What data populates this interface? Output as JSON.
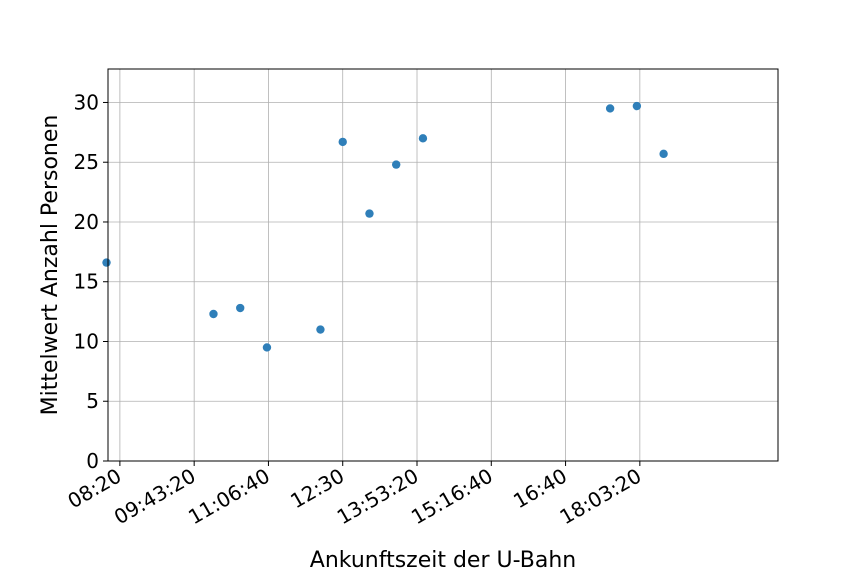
{
  "chart_data": {
    "type": "scatter",
    "title": "",
    "xlabel": "Ankunftszeit der U-Bahn",
    "ylabel": "Mittelwert Anzahl Personen",
    "grid": true,
    "marker_color": "#2f7fb9",
    "xlim_seconds": [
      29200,
      74300
    ],
    "ylim": [
      0,
      32.8
    ],
    "x_ticks": [
      {
        "seconds": 30000,
        "label": "08:20"
      },
      {
        "seconds": 35000,
        "label": "09:43:20"
      },
      {
        "seconds": 40000,
        "label": "11:06:40"
      },
      {
        "seconds": 45000,
        "label": "12:30"
      },
      {
        "seconds": 50000,
        "label": "13:53:20"
      },
      {
        "seconds": 55000,
        "label": "15:16:40"
      },
      {
        "seconds": 60000,
        "label": "16:40"
      },
      {
        "seconds": 65000,
        "label": "18:03:20"
      }
    ],
    "y_ticks": [
      {
        "value": 0,
        "label": "0"
      },
      {
        "value": 5,
        "label": "5"
      },
      {
        "value": 10,
        "label": "10"
      },
      {
        "value": 15,
        "label": "15"
      },
      {
        "value": 20,
        "label": "20"
      },
      {
        "value": 25,
        "label": "25"
      },
      {
        "value": 30,
        "label": "30"
      }
    ],
    "points": [
      {
        "x_seconds": 29100,
        "time": "08:05",
        "y": 16.6
      },
      {
        "x_seconds": 36300,
        "time": "10:05",
        "y": 12.3
      },
      {
        "x_seconds": 38100,
        "time": "10:35",
        "y": 12.8
      },
      {
        "x_seconds": 39900,
        "time": "11:05",
        "y": 9.5
      },
      {
        "x_seconds": 43500,
        "time": "12:05",
        "y": 11.0
      },
      {
        "x_seconds": 45000,
        "time": "12:30",
        "y": 26.7
      },
      {
        "x_seconds": 46800,
        "time": "13:00",
        "y": 20.7
      },
      {
        "x_seconds": 48600,
        "time": "13:30",
        "y": 24.8
      },
      {
        "x_seconds": 50400,
        "time": "14:00",
        "y": 27.0
      },
      {
        "x_seconds": 63000,
        "time": "17:30",
        "y": 29.5
      },
      {
        "x_seconds": 64800,
        "time": "18:00",
        "y": 29.7
      },
      {
        "x_seconds": 66600,
        "time": "18:30",
        "y": 25.7
      }
    ]
  }
}
